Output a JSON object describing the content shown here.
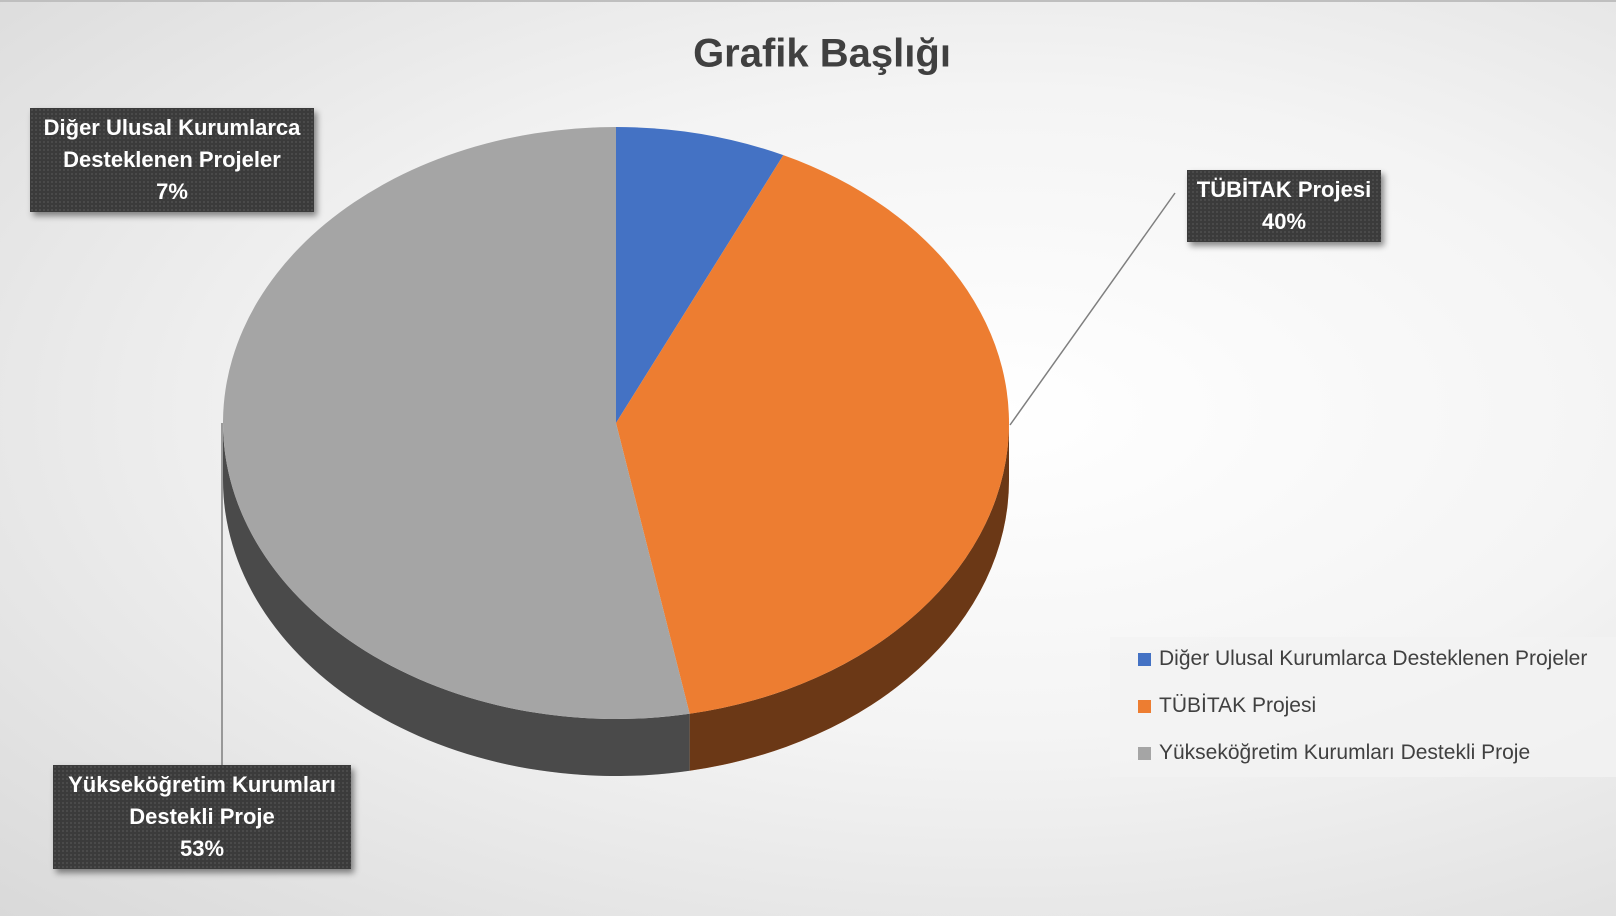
{
  "chart_data": {
    "type": "pie",
    "title": "Grafik Başlığı",
    "categories": [
      "Diğer Ulusal Kurumlarca Desteklenen Projeler",
      "TÜBİTAK Projesi",
      "Yükseköğretim Kurumları Destekli Proje"
    ],
    "values": [
      7,
      40,
      53
    ],
    "value_labels": [
      "7%",
      "40%",
      "53%"
    ],
    "colors": [
      "#4472c4",
      "#ed7d31",
      "#a5a5a5"
    ],
    "legend": "right"
  }
}
